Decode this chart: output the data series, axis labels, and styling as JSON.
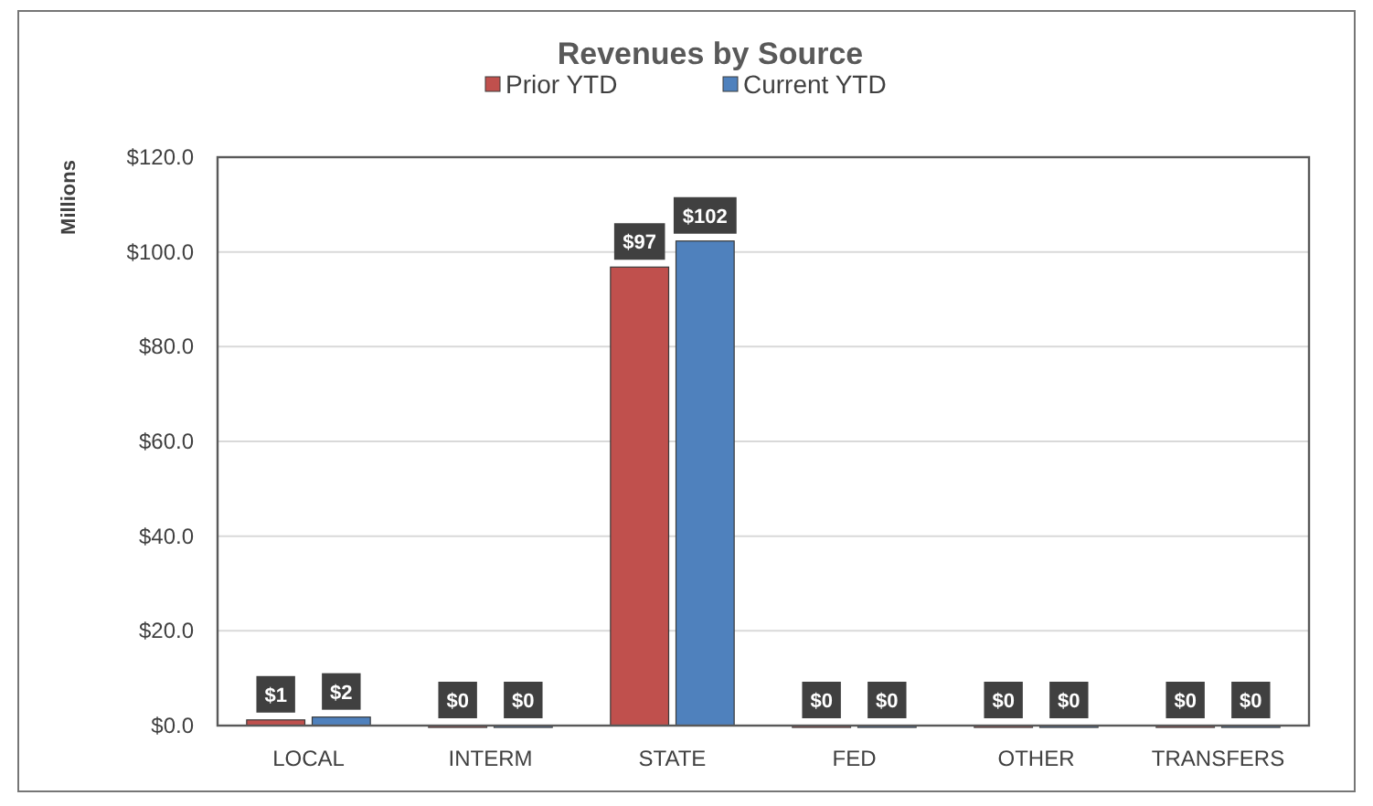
{
  "chart_data": {
    "type": "bar",
    "title": "Revenues by Source",
    "ylabel": "Millions",
    "categories": [
      "LOCAL",
      "INTERM",
      "STATE",
      "FED",
      "OTHER",
      "TRANSFERS"
    ],
    "series": [
      {
        "name": "Prior YTD",
        "color": "#c0504d",
        "values": [
          1.2,
          0,
          96.8,
          0,
          0,
          0
        ],
        "value_labels": [
          "$1",
          "$0",
          "$97",
          "$0",
          "$0",
          "$0"
        ]
      },
      {
        "name": "Current YTD",
        "color": "#4f81bd",
        "values": [
          1.8,
          0,
          102.3,
          0,
          0,
          0
        ],
        "value_labels": [
          "$2",
          "$0",
          "$102",
          "$0",
          "$0",
          "$0"
        ]
      }
    ],
    "ylim": [
      0,
      120
    ],
    "yticks": [
      {
        "value": 0,
        "label": "$0.0"
      },
      {
        "value": 20,
        "label": "$20.0"
      },
      {
        "value": 40,
        "label": "$40.0"
      },
      {
        "value": 60,
        "label": "$60.0"
      },
      {
        "value": 80,
        "label": "$80.0"
      },
      {
        "value": 100,
        "label": "$100.0"
      },
      {
        "value": 120,
        "label": "$120.0"
      }
    ],
    "grid": "y",
    "legend": "top"
  }
}
